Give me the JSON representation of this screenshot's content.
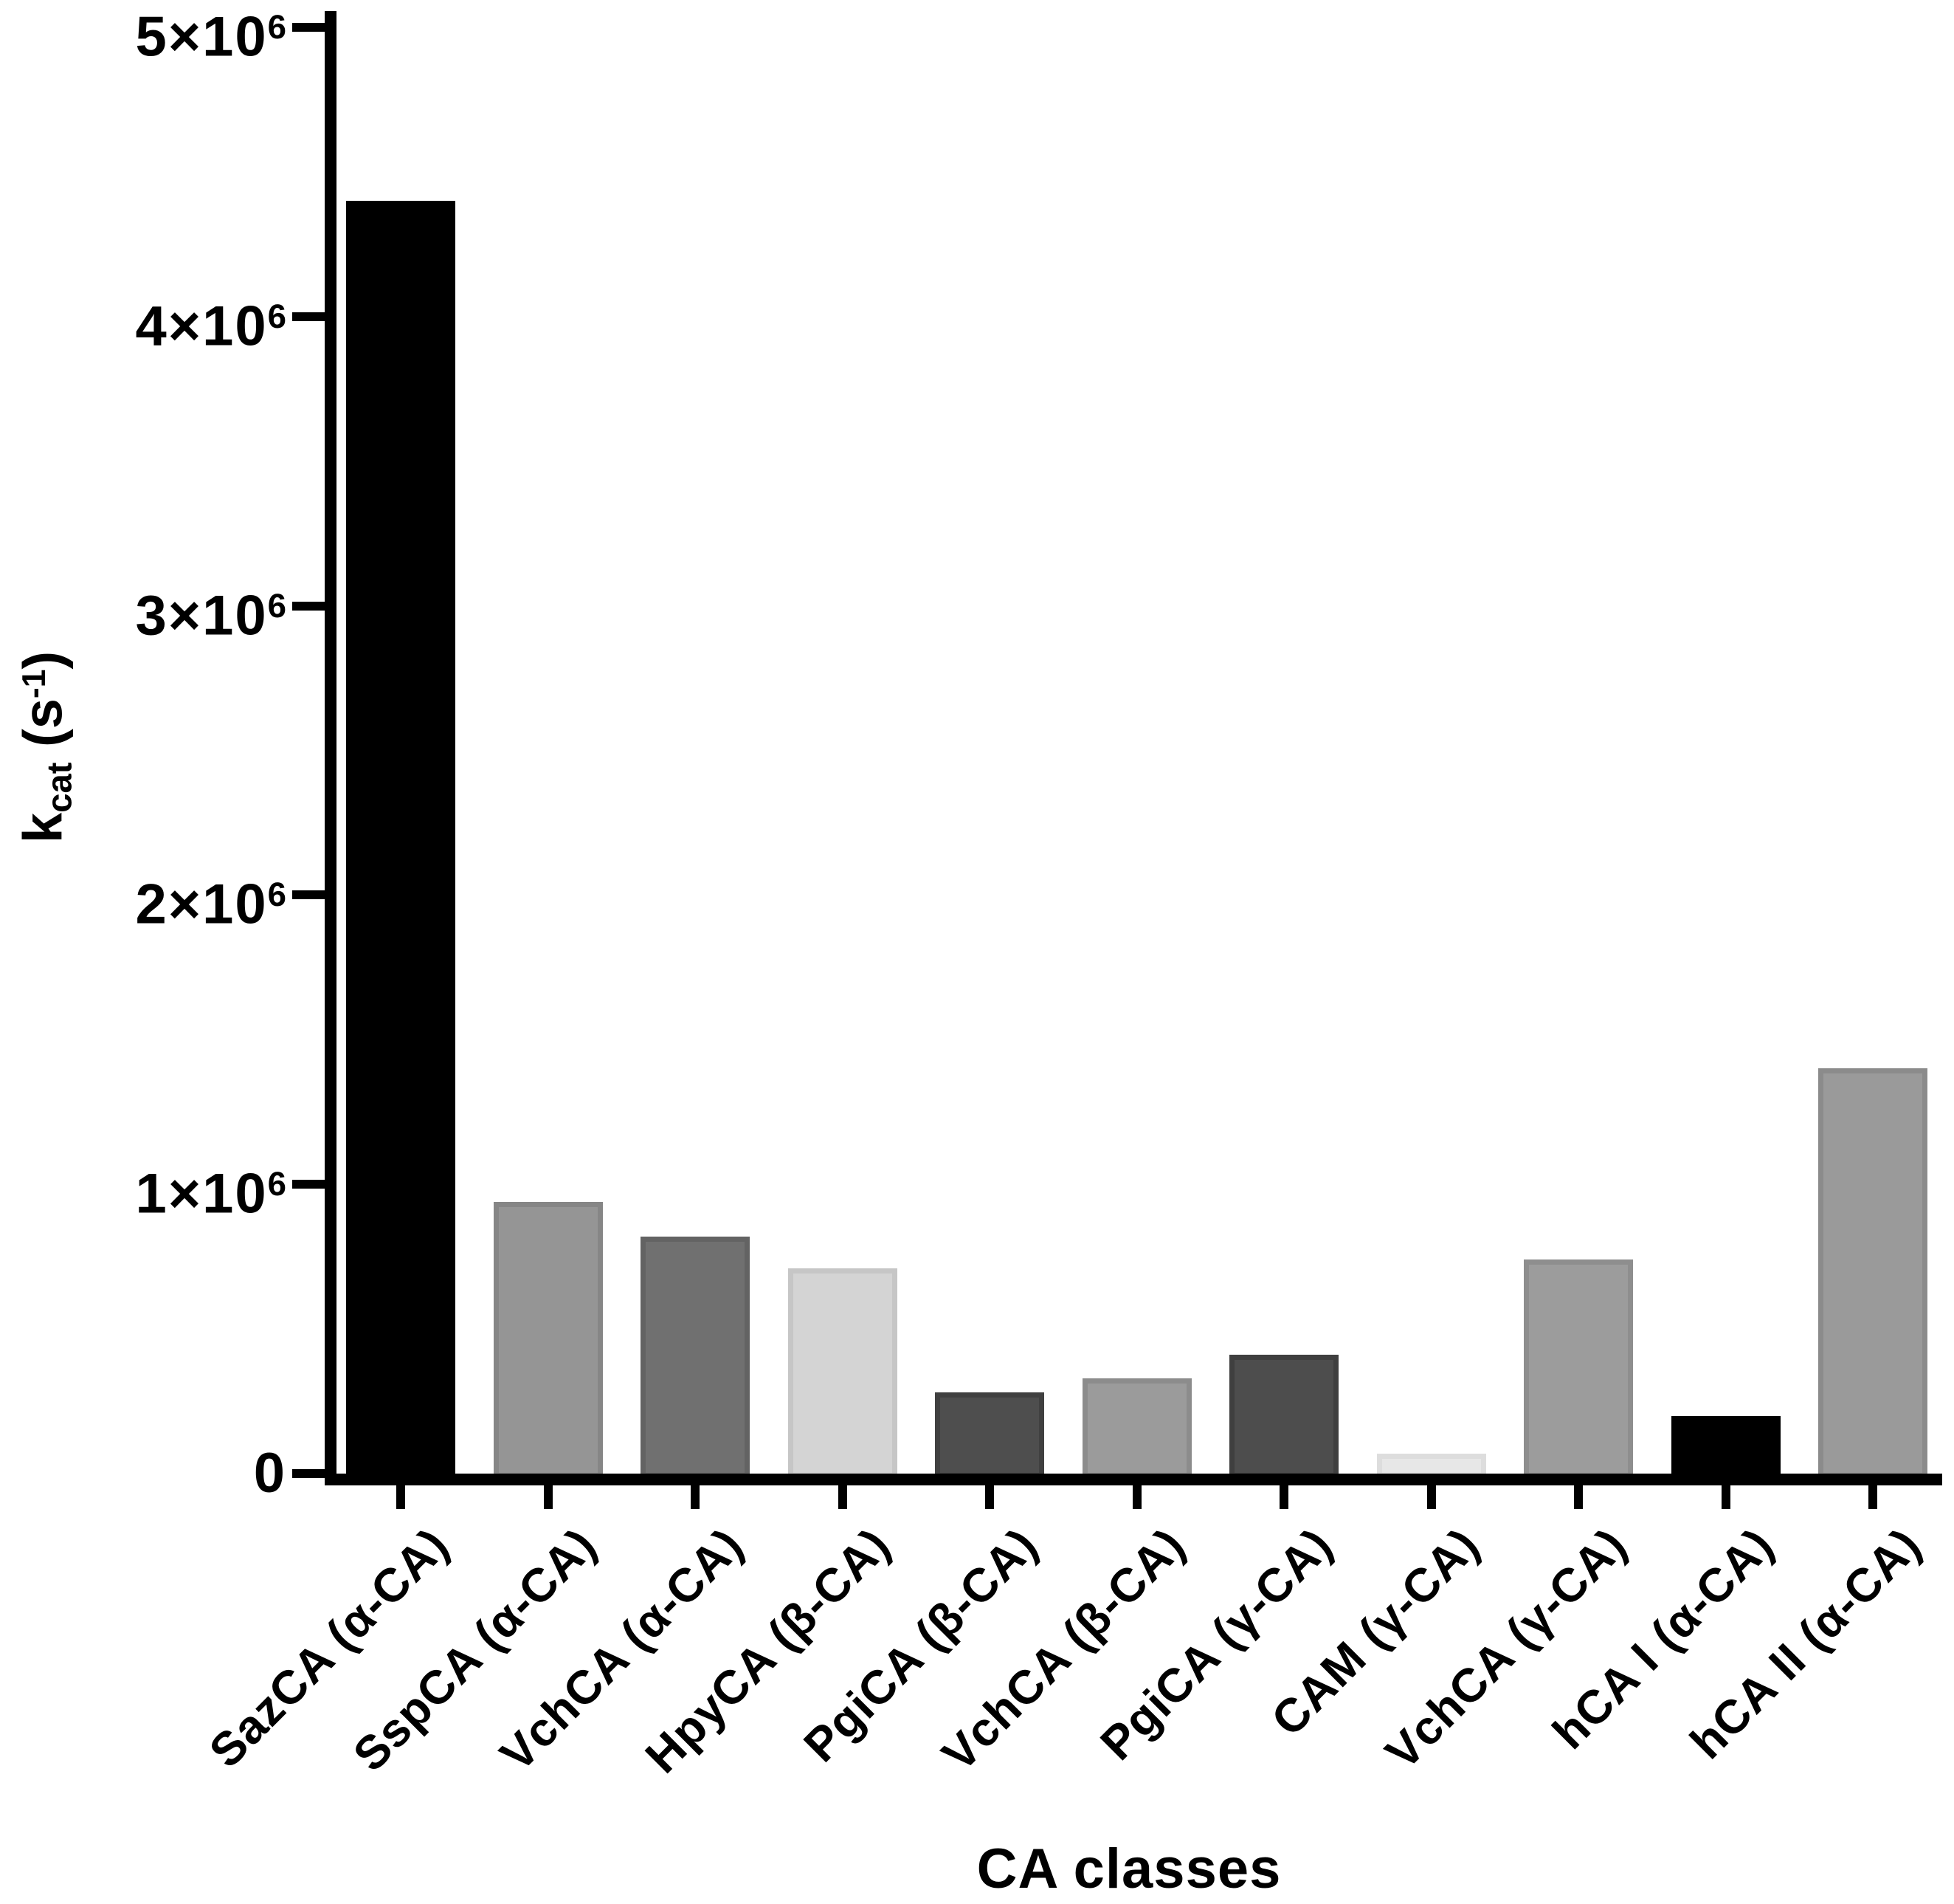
{
  "chart_data": {
    "type": "bar",
    "title": "",
    "xlabel": "CA classes",
    "ylabel": "kcat (s-1)",
    "ylabel_parts": {
      "base": "k",
      "sub": "cat",
      "mid": " (s",
      "sup": "-1",
      "end": ")"
    },
    "ylim": [
      0,
      5000000
    ],
    "grid": false,
    "legend": "none",
    "axis_color": "#000000",
    "background_color": "#ffffff",
    "yaxis_ticks": [
      {
        "value": 5000000,
        "coef": "5",
        "base": "×10",
        "exp": "6"
      },
      {
        "value": 4000000,
        "coef": "4",
        "base": "×10",
        "exp": "6"
      },
      {
        "value": 3000000,
        "coef": "3",
        "base": "×10",
        "exp": "6"
      },
      {
        "value": 2000000,
        "coef": "2",
        "base": "×10",
        "exp": "6"
      },
      {
        "value": 1000000,
        "coef": "1",
        "base": "×10",
        "exp": "6"
      },
      {
        "value": 0,
        "coef": "0",
        "base": "",
        "exp": ""
      }
    ],
    "categories": [
      "SazCA (α-CA)",
      "SspCA (α-CA)",
      "VchCA (α-CA)",
      "HpyCA (β-CA)",
      "PgiCA (β-CA)",
      "VchCA (β-CA)",
      "PgiCA (γ-CA)",
      "CAM (γ-CA)",
      "VchCA (γ-CA)",
      "hCA I (α-CA)",
      "hCA II (α-CA)"
    ],
    "values": [
      4400000,
      940000,
      820000,
      710000,
      280000,
      330000,
      410000,
      70000,
      740000,
      200000,
      1400000
    ],
    "bar_ids": [
      "sazca",
      "sspca",
      "vchca-alpha",
      "hpyca",
      "pgica-beta",
      "vchca-beta",
      "pgica-gamma",
      "cam",
      "vchca-gamma",
      "hca-i",
      "hca-ii"
    ],
    "bar_colors": [
      "#000000",
      "#959595",
      "#707070",
      "#d4d4d4",
      "#4e4e4e",
      "#9b9b9b",
      "#4d4d4d",
      "#e7e7e7",
      "#9c9c9c",
      "#000000",
      "#9a9a9a"
    ],
    "bar_edge_colors": [
      "#000000",
      "#868686",
      "#636363",
      "#c6c6c6",
      "#404040",
      "#8c8c8c",
      "#3f3f3f",
      "#dddddd",
      "#8e8e8e",
      "#000000",
      "#8b8b8b"
    ]
  }
}
